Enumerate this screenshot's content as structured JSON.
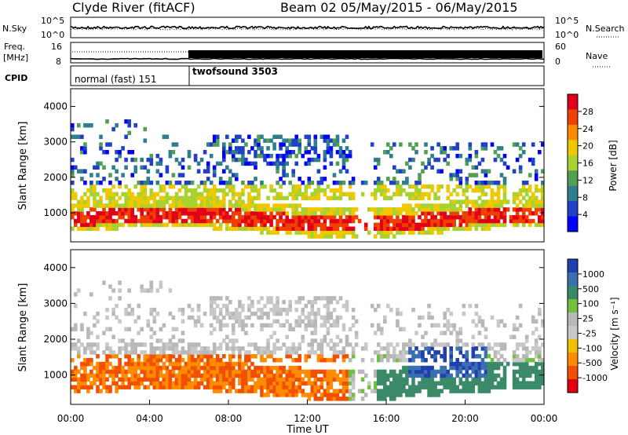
{
  "header": {
    "station": "Clyde River (fitACF)",
    "beam_range": "Beam 02  05/May/2015 - 06/May/2015"
  },
  "strips": {
    "nsky_label": "N.Sky",
    "nsky_ticks": [
      "10^5",
      "10^0"
    ],
    "nsearch_label": "N.Search",
    "freq_label_1": "Freq.",
    "freq_label_2": "[MHz]",
    "freq_ticks": [
      "16",
      "8"
    ],
    "nave_label": "Nave",
    "nave_ticks": [
      "60",
      "0"
    ],
    "cpid_label": "CPID",
    "cpid_segments": [
      {
        "name": "normal (fast) 151",
        "start_hour": 0,
        "end_hour": 6
      },
      {
        "name": "twofsound 3503",
        "start_hour": 6,
        "end_hour": 24
      }
    ]
  },
  "chart_data": [
    {
      "type": "heatmap",
      "panel": "power",
      "ylabel": "Slant Range [km]",
      "xlabel": "",
      "y_ticks": [
        1000,
        2000,
        3000,
        4000
      ],
      "ylim": [
        180,
        4500
      ],
      "xlim_hours": [
        0,
        24
      ],
      "colorbar_label": "Power [dB]",
      "colorbar_ticks": [
        "28",
        "24",
        "20",
        "16",
        "12",
        "8",
        "4"
      ],
      "colorbar_colors": [
        "#e0001a",
        "#f04000",
        "#ff8c00",
        "#f0c800",
        "#a8d230",
        "#50a050",
        "#2e7e8e",
        "#2040c8",
        "#0000ff"
      ]
    },
    {
      "type": "heatmap",
      "panel": "velocity",
      "ylabel": "Slant Range [km]",
      "xlabel": "Time UT",
      "x_ticks": [
        "00:00",
        "04:00",
        "08:00",
        "12:00",
        "16:00",
        "20:00",
        "00:00"
      ],
      "y_ticks": [
        1000,
        2000,
        3000,
        4000
      ],
      "ylim": [
        180,
        4500
      ],
      "xlim_hours": [
        0,
        24
      ],
      "colorbar_label": "Velocity [m s⁻¹]",
      "colorbar_ticks": [
        "1000",
        "500",
        "100",
        "25",
        "-25",
        "-100",
        "-500",
        "-1000"
      ],
      "colorbar_colors": [
        "#2040b0",
        "#3a70b0",
        "#3a8a6a",
        "#70c040",
        "#b8b8b8",
        "#c8c8c8",
        "#f0c000",
        "#ff8c00",
        "#f05000",
        "#e00010"
      ]
    }
  ]
}
